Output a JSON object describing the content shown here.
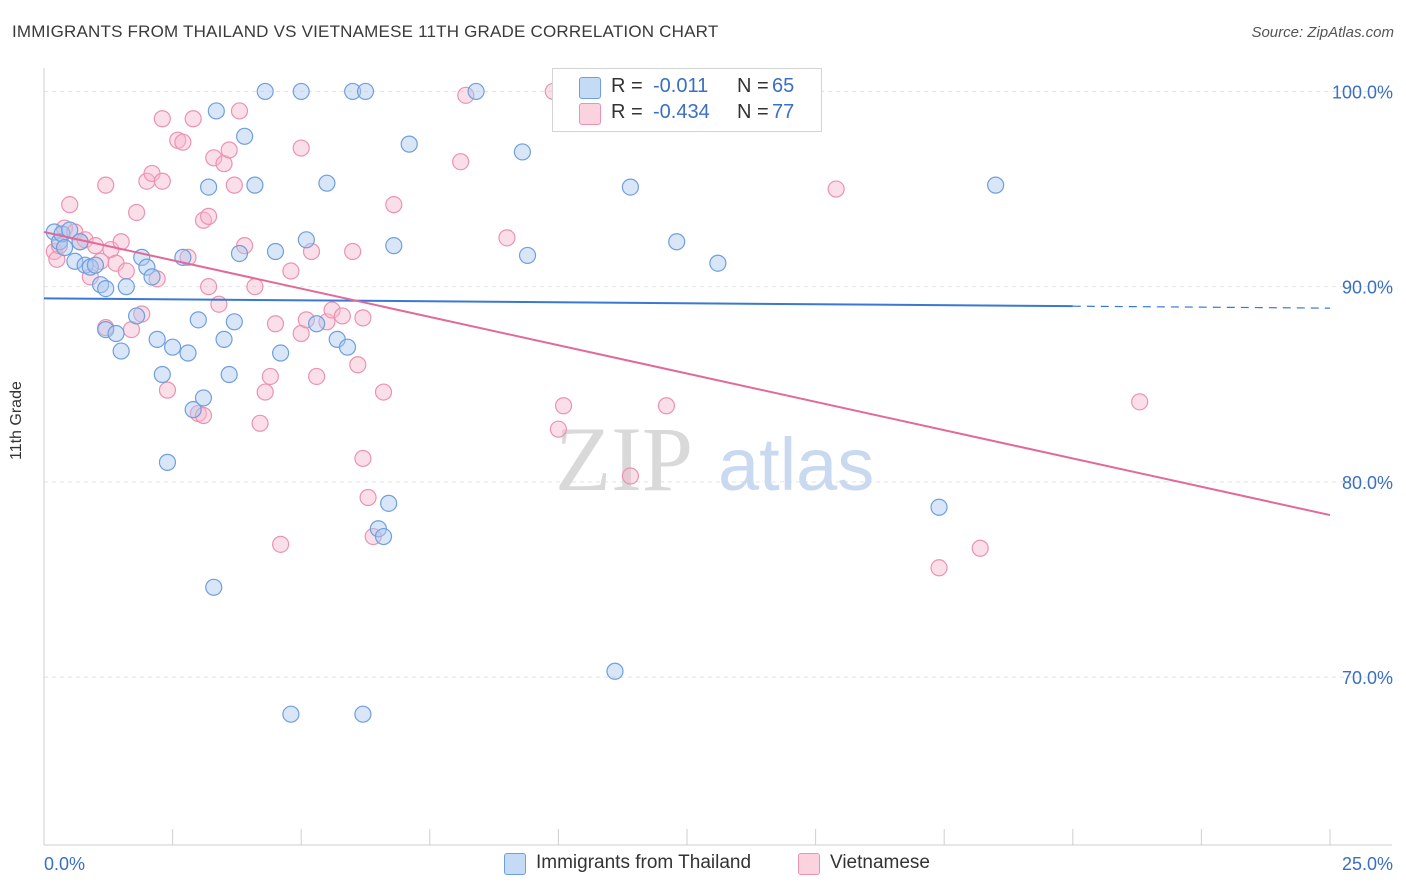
{
  "title": "IMMIGRANTS FROM THAILAND VS VIETNAMESE 11TH GRADE CORRELATION CHART",
  "source": "Source: ZipAtlas.com",
  "watermark": {
    "zip": "ZIP",
    "atlas": "atlas"
  },
  "legend": {
    "rows": [
      {
        "r_label": "R =",
        "r_value": "-0.011",
        "n_label": "N =",
        "n_value": "65",
        "color": "#aac8f0"
      },
      {
        "r_label": "R =",
        "r_value": "-0.434",
        "n_label": "N =",
        "n_value": "77",
        "color": "#f6b9cc"
      }
    ]
  },
  "bottom_legend": [
    {
      "label": "Immigrants from Thailand",
      "color": "#aac8f0"
    },
    {
      "label": "Vietnamese",
      "color": "#f6b9cc"
    }
  ],
  "chart_data": {
    "type": "scatter",
    "title": "IMMIGRANTS FROM THAILAND VS VIETNAMESE 11TH GRADE CORRELATION CHART",
    "xlabel": "",
    "ylabel": "11th Grade",
    "xlim": [
      0,
      25
    ],
    "ylim": [
      61.4,
      101.2
    ],
    "x_tick_labels": [
      "0.0%",
      "25.0%"
    ],
    "y_ticks": [
      100,
      90,
      80,
      70
    ],
    "y_tick_labels": [
      "100.0%",
      "90.0%",
      "80.0%",
      "70.0%"
    ],
    "grid": true,
    "colors": {
      "thailand": "#3a78d4",
      "vietnamese": "#e06a99",
      "tick_label": "#3a6fc4"
    },
    "series": [
      {
        "name": "Immigrants from Thailand",
        "color": "#aac8f0",
        "stroke": "#6f9fde",
        "points": [
          [
            0.2,
            92.8
          ],
          [
            0.3,
            92.3
          ],
          [
            0.35,
            92.7
          ],
          [
            0.4,
            92.0
          ],
          [
            0.5,
            92.9
          ],
          [
            0.6,
            91.3
          ],
          [
            0.7,
            92.3
          ],
          [
            0.8,
            91.1
          ],
          [
            0.9,
            91.0
          ],
          [
            1.0,
            91.1
          ],
          [
            1.1,
            90.1
          ],
          [
            1.2,
            89.9
          ],
          [
            1.2,
            87.8
          ],
          [
            1.4,
            87.6
          ],
          [
            1.5,
            86.7
          ],
          [
            1.6,
            90.0
          ],
          [
            1.8,
            88.5
          ],
          [
            1.9,
            91.5
          ],
          [
            2.0,
            91.0
          ],
          [
            2.1,
            90.5
          ],
          [
            2.2,
            87.3
          ],
          [
            2.3,
            85.5
          ],
          [
            2.4,
            81.0
          ],
          [
            2.5,
            86.9
          ],
          [
            2.7,
            91.5
          ],
          [
            2.8,
            86.6
          ],
          [
            2.9,
            83.7
          ],
          [
            3.0,
            88.3
          ],
          [
            3.1,
            84.3
          ],
          [
            3.2,
            95.1
          ],
          [
            3.35,
            99.0
          ],
          [
            3.5,
            87.3
          ],
          [
            3.6,
            85.5
          ],
          [
            3.7,
            88.2
          ],
          [
            3.8,
            91.7
          ],
          [
            3.9,
            97.7
          ],
          [
            4.1,
            95.2
          ],
          [
            4.3,
            100.0
          ],
          [
            4.5,
            91.8
          ],
          [
            4.6,
            86.6
          ],
          [
            4.8,
            68.1
          ],
          [
            5.0,
            100.0
          ],
          [
            5.1,
            92.4
          ],
          [
            5.3,
            88.1
          ],
          [
            5.5,
            95.3
          ],
          [
            5.7,
            87.3
          ],
          [
            5.9,
            86.9
          ],
          [
            6.0,
            100.0
          ],
          [
            6.2,
            68.1
          ],
          [
            6.25,
            100.0
          ],
          [
            6.5,
            77.6
          ],
          [
            6.6,
            77.2
          ],
          [
            6.7,
            78.9
          ],
          [
            6.8,
            92.1
          ],
          [
            7.1,
            97.3
          ],
          [
            8.4,
            100.0
          ],
          [
            9.3,
            96.9
          ],
          [
            9.4,
            91.6
          ],
          [
            11.1,
            70.3
          ],
          [
            11.4,
            95.1
          ],
          [
            12.3,
            92.3
          ],
          [
            13.1,
            91.2
          ],
          [
            17.4,
            78.7
          ],
          [
            18.5,
            95.2
          ],
          [
            3.3,
            74.6
          ]
        ]
      },
      {
        "name": "Vietnamese",
        "color": "#f6b9cc",
        "stroke": "#eb93b1",
        "points": [
          [
            0.2,
            91.8
          ],
          [
            0.25,
            91.4
          ],
          [
            0.3,
            92.1
          ],
          [
            0.4,
            93.0
          ],
          [
            0.5,
            94.2
          ],
          [
            0.6,
            92.8
          ],
          [
            0.7,
            92.3
          ],
          [
            0.8,
            92.4
          ],
          [
            0.9,
            90.5
          ],
          [
            1.0,
            92.1
          ],
          [
            1.1,
            91.3
          ],
          [
            1.2,
            87.9
          ],
          [
            1.2,
            95.2
          ],
          [
            1.3,
            91.9
          ],
          [
            1.4,
            91.2
          ],
          [
            1.5,
            92.3
          ],
          [
            1.6,
            90.8
          ],
          [
            1.7,
            87.8
          ],
          [
            1.8,
            93.8
          ],
          [
            1.9,
            88.6
          ],
          [
            2.0,
            95.4
          ],
          [
            2.1,
            95.8
          ],
          [
            2.2,
            90.4
          ],
          [
            2.3,
            95.4
          ],
          [
            2.4,
            84.7
          ],
          [
            2.6,
            97.5
          ],
          [
            2.7,
            97.4
          ],
          [
            2.8,
            91.5
          ],
          [
            2.9,
            98.6
          ],
          [
            3.0,
            83.5
          ],
          [
            3.1,
            93.4
          ],
          [
            3.2,
            90.0
          ],
          [
            3.2,
            93.6
          ],
          [
            3.3,
            96.6
          ],
          [
            3.4,
            89.1
          ],
          [
            3.5,
            96.3
          ],
          [
            3.6,
            97.0
          ],
          [
            3.7,
            95.2
          ],
          [
            3.8,
            99.0
          ],
          [
            3.9,
            92.1
          ],
          [
            4.1,
            90.0
          ],
          [
            4.2,
            83.0
          ],
          [
            4.3,
            84.6
          ],
          [
            4.4,
            85.4
          ],
          [
            4.5,
            88.1
          ],
          [
            4.6,
            76.8
          ],
          [
            4.8,
            90.8
          ],
          [
            5.0,
            97.1
          ],
          [
            5.0,
            87.6
          ],
          [
            5.2,
            91.8
          ],
          [
            5.3,
            85.4
          ],
          [
            5.5,
            88.2
          ],
          [
            5.6,
            88.8
          ],
          [
            5.8,
            88.5
          ],
          [
            6.0,
            91.8
          ],
          [
            6.1,
            86.0
          ],
          [
            6.2,
            81.2
          ],
          [
            6.3,
            79.2
          ],
          [
            6.4,
            77.2
          ],
          [
            6.6,
            84.6
          ],
          [
            6.8,
            94.2
          ],
          [
            6.2,
            88.4
          ],
          [
            8.1,
            96.4
          ],
          [
            8.2,
            99.8
          ],
          [
            9.0,
            92.5
          ],
          [
            9.9,
            100.0
          ],
          [
            10.0,
            82.7
          ],
          [
            10.1,
            83.9
          ],
          [
            11.4,
            80.3
          ],
          [
            12.1,
            83.9
          ],
          [
            15.4,
            95.0
          ],
          [
            17.4,
            75.6
          ],
          [
            18.2,
            76.6
          ],
          [
            21.3,
            84.1
          ],
          [
            3.1,
            83.4
          ],
          [
            5.1,
            88.3
          ],
          [
            2.3,
            98.6
          ]
        ]
      }
    ],
    "trend_lines": [
      {
        "series": "Immigrants from Thailand",
        "x": [
          0,
          20
        ],
        "y": [
          89.4,
          89.0
        ],
        "dashed_to_x": 25,
        "dashed_to_y": 88.9
      },
      {
        "series": "Vietnamese",
        "x": [
          0,
          25
        ],
        "y": [
          92.8,
          78.3
        ]
      }
    ]
  }
}
